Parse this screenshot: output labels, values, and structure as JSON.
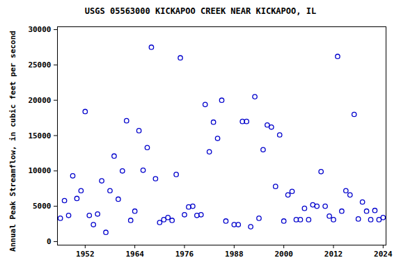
{
  "chart_data": {
    "type": "scatter",
    "title": "USGS 05563000 KICKAPOO CREEK NEAR KICKAPOO, IL",
    "y_label": "Annual Peak Streamflow, in cubic feet per second",
    "x": [
      1946,
      1947,
      1948,
      1949,
      1950,
      1951,
      1952,
      1953,
      1954,
      1955,
      1956,
      1957,
      1958,
      1959,
      1960,
      1961,
      1962,
      1963,
      1964,
      1965,
      1966,
      1967,
      1968,
      1969,
      1970,
      1971,
      1972,
      1973,
      1974,
      1975,
      1976,
      1977,
      1978,
      1979,
      1980,
      1981,
      1982,
      1983,
      1984,
      1985,
      1986,
      1988,
      1989,
      1990,
      1991,
      1992,
      1993,
      1994,
      1995,
      1996,
      1997,
      1998,
      1999,
      2000,
      2001,
      2002,
      2003,
      2004,
      2005,
      2006,
      2007,
      2008,
      2009,
      2010,
      2011,
      2012,
      2013,
      2014,
      2015,
      2016,
      2017,
      2018,
      2019,
      2020,
      2021,
      2022,
      2023,
      2024
    ],
    "values": [
      3300,
      5800,
      3700,
      9300,
      6100,
      7200,
      18400,
      3700,
      2400,
      3900,
      8600,
      1300,
      7200,
      12100,
      6000,
      10000,
      17100,
      3000,
      4300,
      15700,
      10100,
      13300,
      27500,
      8900,
      2700,
      3100,
      3400,
      3000,
      9500,
      26000,
      3800,
      4900,
      5000,
      3700,
      3800,
      19400,
      12700,
      16900,
      14600,
      20000,
      2900,
      2400,
      2400,
      17000,
      17000,
      2100,
      20500,
      3300,
      13000,
      16500,
      16200,
      7800,
      15100,
      2900,
      6600,
      7100,
      3100,
      3100,
      4700,
      3100,
      5200,
      5000,
      9900,
      5000,
      3600,
      3100,
      26200,
      4300,
      7200,
      6600,
      18000,
      3200,
      5600,
      4300,
      3100,
      4400,
      3100,
      3400
    ],
    "color": "#0000cc",
    "marker": "circle",
    "xlim": [
      1945.3,
      2024.7
    ],
    "xticks": [
      1952,
      1964,
      1976,
      1988,
      2000,
      2012,
      2024
    ],
    "ylim": [
      -500,
      30400
    ],
    "yticks": [
      0,
      5000,
      10000,
      15000,
      20000,
      25000,
      30000
    ],
    "grid": false
  }
}
